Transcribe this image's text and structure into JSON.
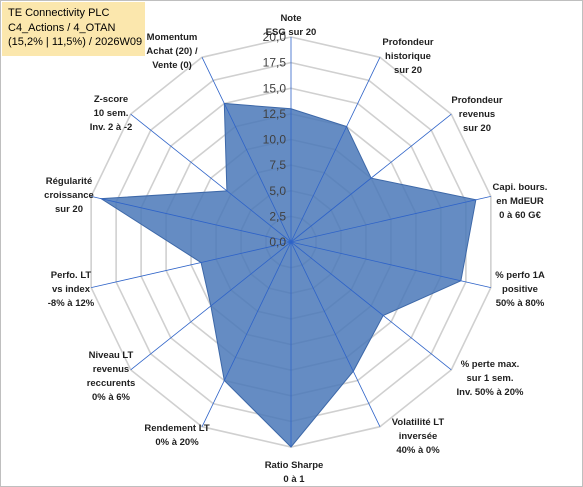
{
  "header": {
    "line1": "TE Connectivity PLC",
    "line2": "C4_Actions / 4_OTAN",
    "line3": "(15,2% | 11,5%) / 2026W09"
  },
  "colors": {
    "fill": "#4a78b8",
    "stroke": "#3d68a8",
    "grid": "#d0d0d0",
    "spoke": "#2e63c8",
    "header_bg": "#fbe7ad"
  },
  "chart_data": {
    "type": "radar",
    "title": "",
    "rlim": [
      0,
      20
    ],
    "ticks": [
      "0,0",
      "2,5",
      "5,0",
      "7,5",
      "10,0",
      "12,5",
      "15,0",
      "17,5",
      "20,0"
    ],
    "tick_values": [
      0,
      2.5,
      5,
      7.5,
      10,
      12.5,
      15,
      17.5,
      20
    ],
    "grid": true,
    "axes": [
      {
        "label": [
          "Note",
          "ESG sur 20"
        ]
      },
      {
        "label": [
          "Profondeur",
          "historique",
          "sur 20"
        ]
      },
      {
        "label": [
          "Profondeur",
          "revenus",
          "sur 20"
        ]
      },
      {
        "label": [
          "Capi. bours.",
          "en MdEUR",
          "0 à 60 G€"
        ]
      },
      {
        "label": [
          "% perfo 1A",
          "positive",
          "50% à 80%"
        ]
      },
      {
        "label": [
          "% perte max.",
          "sur 1 sem.",
          "Inv. 50% à 20%"
        ]
      },
      {
        "label": [
          "Volatilité LT",
          "inversée",
          "40% à 0%"
        ]
      },
      {
        "label": [
          "Ratio Sharpe",
          "0 à 1"
        ]
      },
      {
        "label": [
          "Rendement LT",
          "0% à 20%"
        ]
      },
      {
        "label": [
          "Niveau LT",
          "revenus",
          "reccurents",
          "0% à 6%"
        ]
      },
      {
        "label": [
          "Perfo. LT",
          "vs index",
          "-8% à 12%"
        ]
      },
      {
        "label": [
          "Régularité",
          "croissance",
          "sur 20"
        ]
      },
      {
        "label": [
          "Z-score",
          "10 sem.",
          "Inv. 2 à -2"
        ]
      },
      {
        "label": [
          "Momentum",
          "Achat (20) /",
          "Vente (0)"
        ]
      }
    ],
    "series": [
      {
        "values": [
          13,
          12.5,
          10,
          18.5,
          17,
          11.5,
          14,
          20,
          15,
          10,
          9,
          19,
          8,
          15
        ]
      }
    ]
  }
}
